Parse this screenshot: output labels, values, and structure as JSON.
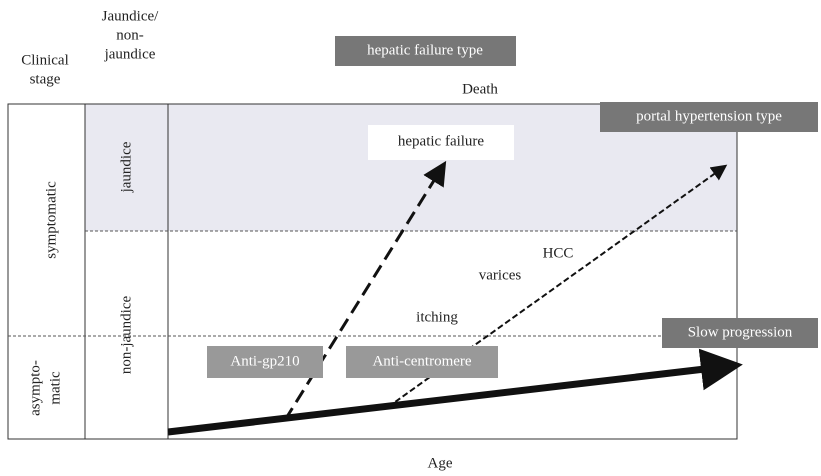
{
  "header": {
    "clinical_stage": [
      "Clinical",
      "stage"
    ],
    "jaundice_column": [
      "Jaundice/",
      "non-",
      "jaundice"
    ]
  },
  "stages": {
    "symptomatic": "symptomatic",
    "asymptomatic": [
      "asympto-",
      "matic"
    ]
  },
  "jaundice_rows": {
    "jaundice": "jaundice",
    "non_jaundice": "non-jaundice"
  },
  "labels": {
    "hepatic_failure_type": "hepatic failure type",
    "death": "Death",
    "portal_hypertension_type": "portal hypertension type",
    "hepatic_failure": "hepatic failure",
    "hcc": "HCC",
    "varices": "varices",
    "itching": "itching",
    "slow_progression": "Slow progression",
    "anti_gp210": "Anti-gp210",
    "anti_centromere": "Anti-centromere"
  },
  "x_axis": "Age"
}
